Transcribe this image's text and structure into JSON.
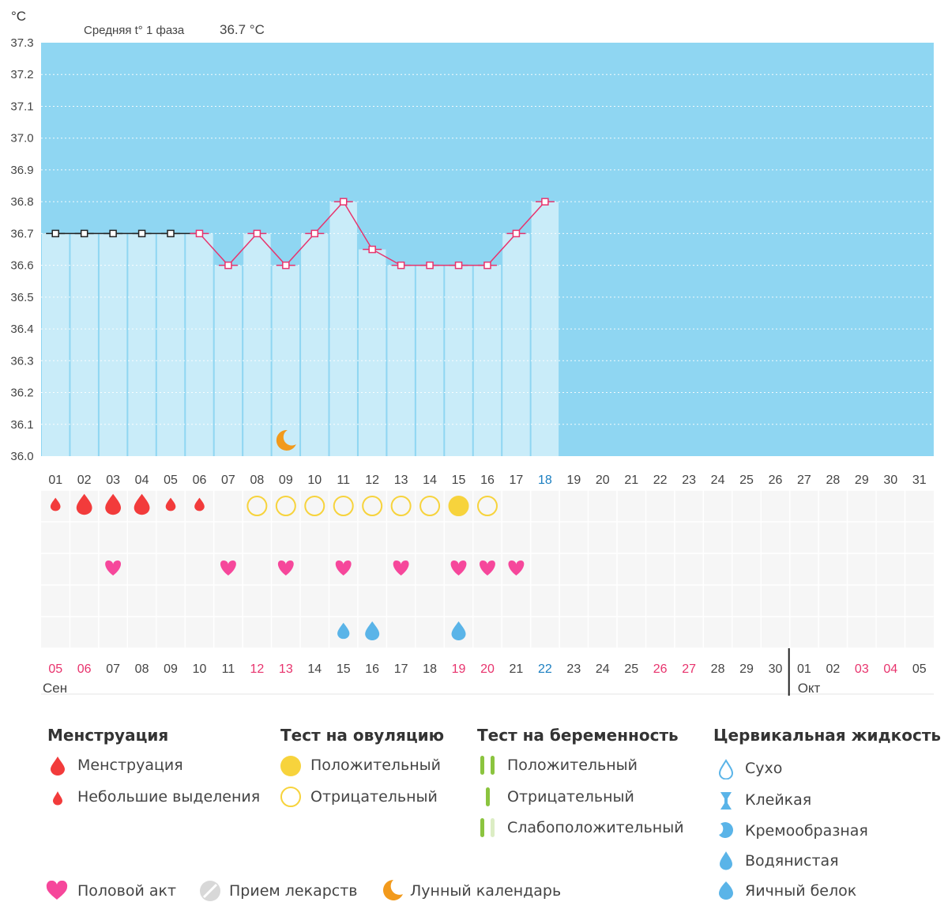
{
  "chart_data": {
    "type": "line",
    "y_unit": "°C",
    "avg_label": "Средняя t° 1 фаза",
    "avg_value": "36.7 °C",
    "ylim": [
      36.0,
      37.3
    ],
    "y_ticks": [
      "37.3",
      "37.2",
      "37.1",
      "37.0",
      "36.9",
      "36.8",
      "36.7",
      "36.6",
      "36.5",
      "36.4",
      "36.3",
      "36.2",
      "36.1",
      "36.0"
    ],
    "cycle_days": [
      "01",
      "02",
      "03",
      "04",
      "05",
      "06",
      "07",
      "08",
      "09",
      "10",
      "11",
      "12",
      "13",
      "14",
      "15",
      "16",
      "17",
      "18",
      "19",
      "20",
      "21",
      "22",
      "23",
      "24",
      "25",
      "26",
      "27",
      "28",
      "29",
      "30",
      "31"
    ],
    "current_cycle_day_index": 17,
    "temperatures": [
      36.7,
      36.7,
      36.7,
      36.7,
      36.7,
      36.7,
      36.6,
      36.7,
      36.6,
      36.7,
      36.8,
      36.65,
      36.6,
      36.6,
      36.6,
      36.6,
      36.7,
      36.8
    ],
    "menstruation_marker_count": 5,
    "moon_day_index": 8,
    "menstruation": [
      {
        "day_index": 0,
        "kind": "spotting"
      },
      {
        "day_index": 1,
        "kind": "menstruation"
      },
      {
        "day_index": 2,
        "kind": "menstruation"
      },
      {
        "day_index": 3,
        "kind": "menstruation"
      },
      {
        "day_index": 4,
        "kind": "spotting"
      },
      {
        "day_index": 5,
        "kind": "spotting"
      }
    ],
    "ovulation_tests": [
      {
        "day_index": 7,
        "result": "negative"
      },
      {
        "day_index": 8,
        "result": "negative"
      },
      {
        "day_index": 9,
        "result": "negative"
      },
      {
        "day_index": 10,
        "result": "negative"
      },
      {
        "day_index": 11,
        "result": "negative"
      },
      {
        "day_index": 12,
        "result": "negative"
      },
      {
        "day_index": 13,
        "result": "negative"
      },
      {
        "day_index": 14,
        "result": "positive"
      },
      {
        "day_index": 15,
        "result": "negative"
      }
    ],
    "intercourse_day_indices": [
      2,
      6,
      8,
      10,
      12,
      14,
      15,
      16
    ],
    "cervical_fluid": [
      {
        "day_index": 10,
        "kind": "watery"
      },
      {
        "day_index": 11,
        "kind": "egg_white"
      },
      {
        "day_index": 14,
        "kind": "egg_white"
      }
    ],
    "calendar_dates": [
      {
        "label": "05",
        "weekend": true
      },
      {
        "label": "06",
        "weekend": true
      },
      {
        "label": "07"
      },
      {
        "label": "08"
      },
      {
        "label": "09"
      },
      {
        "label": "10"
      },
      {
        "label": "11"
      },
      {
        "label": "12",
        "weekend": true
      },
      {
        "label": "13",
        "weekend": true
      },
      {
        "label": "14"
      },
      {
        "label": "15"
      },
      {
        "label": "16"
      },
      {
        "label": "17"
      },
      {
        "label": "18"
      },
      {
        "label": "19",
        "weekend": true
      },
      {
        "label": "20",
        "weekend": true
      },
      {
        "label": "21"
      },
      {
        "label": "22",
        "today": true
      },
      {
        "label": "23"
      },
      {
        "label": "24"
      },
      {
        "label": "25"
      },
      {
        "label": "26",
        "weekend": true
      },
      {
        "label": "27",
        "weekend": true
      },
      {
        "label": "28"
      },
      {
        "label": "29"
      },
      {
        "label": "30"
      },
      {
        "label": "01"
      },
      {
        "label": "02"
      },
      {
        "label": "03",
        "weekend": true
      },
      {
        "label": "04",
        "weekend": true
      },
      {
        "label": "05"
      }
    ],
    "months": [
      {
        "label": "Сен",
        "start_index": 0
      },
      {
        "label": "Окт",
        "start_index": 26
      }
    ],
    "colors": {
      "background": "#8fd6f2",
      "bar": "#c9ecf9",
      "line": "#e8336d",
      "menstruation_marker": "#222222",
      "weekend": "#e8336d",
      "today": "#1b7fc1",
      "menstruation": "#f23b3b",
      "ovulation": "#f7d33c",
      "intercourse": "#f6479b",
      "fluid": "#5ab4e8",
      "moon": "#f29a1c",
      "pregnancy": "#8bc43f"
    }
  },
  "legend": {
    "menstruation": {
      "title": "Менструация",
      "items": [
        "Менструация",
        "Небольшие выделения"
      ]
    },
    "ovulation": {
      "title": "Тест на овуляцию",
      "items": [
        "Положительный",
        "Отрицательный"
      ]
    },
    "pregnancy": {
      "title": "Тест на беременность",
      "items": [
        "Положительный",
        "Отрицательный",
        "Слабоположительный"
      ]
    },
    "cervical": {
      "title": "Цервикальная жидкость",
      "items": [
        "Сухо",
        "Клейкая",
        "Кремообразная",
        "Водянистая",
        "Яичный белок"
      ]
    },
    "bottom": [
      "Половой акт",
      "Прием лекарств",
      "Лунный календарь"
    ]
  }
}
